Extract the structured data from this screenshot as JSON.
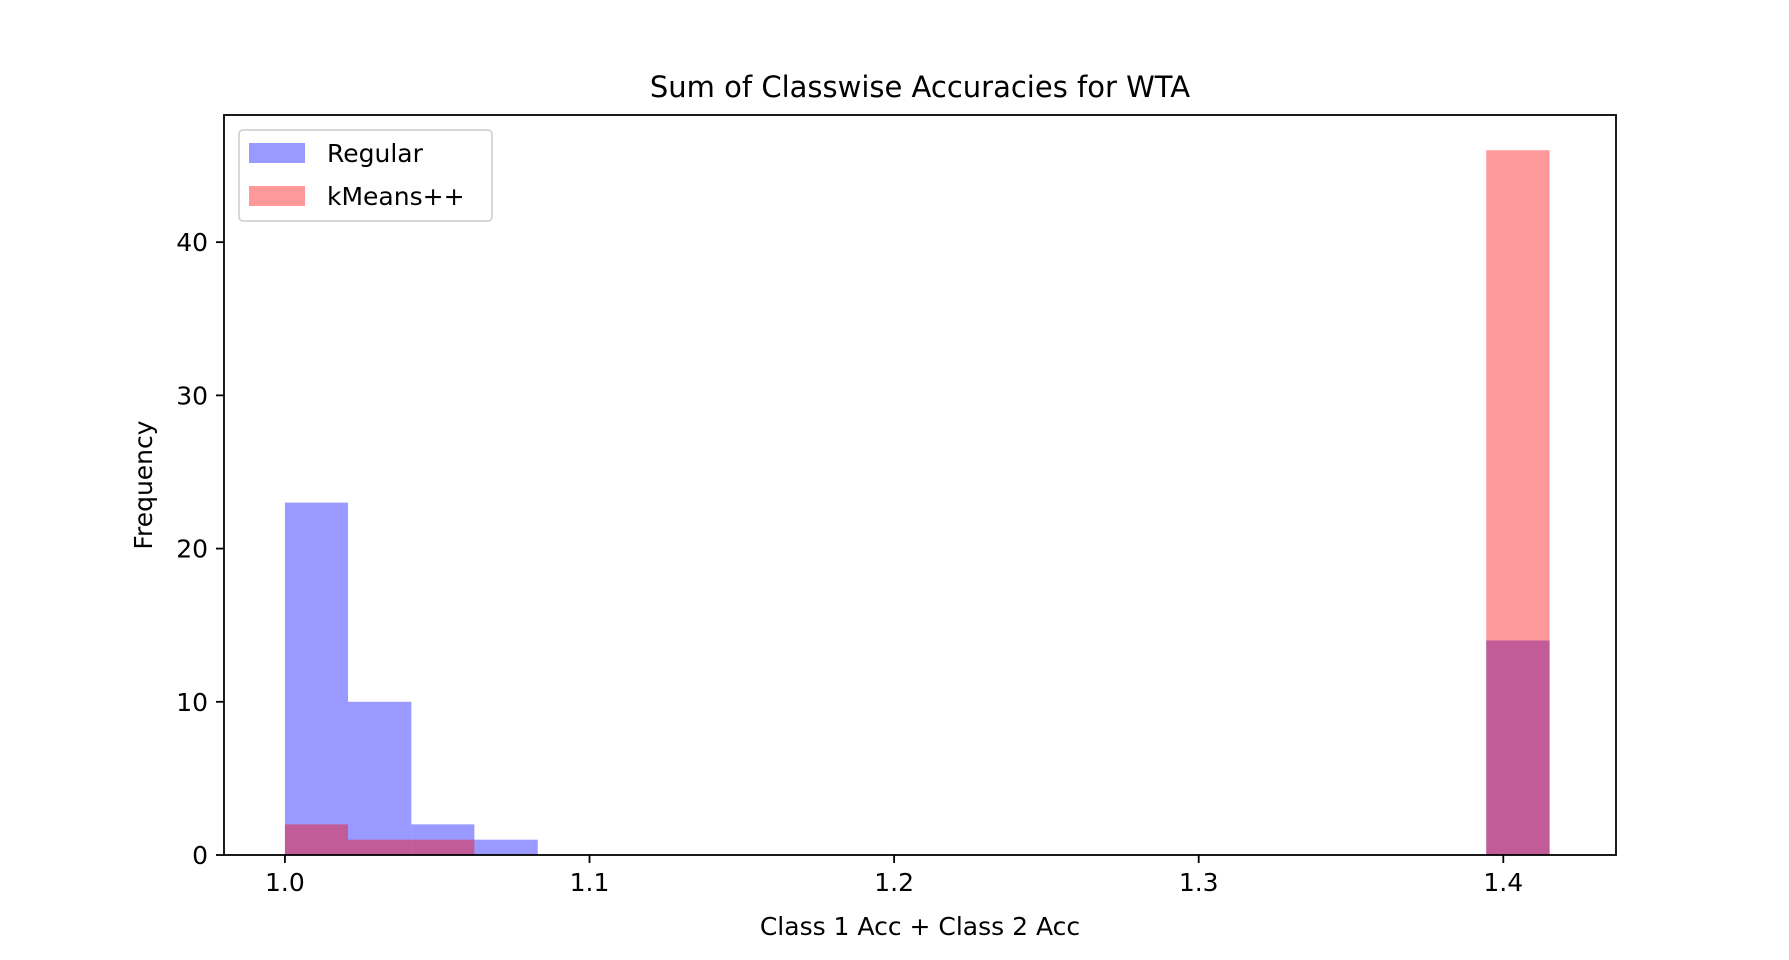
{
  "chart_data": {
    "type": "histogram",
    "title": "Sum of Classwise Accuracies for WTA",
    "xlabel": "Class 1 Acc + Class 2 Acc",
    "ylabel": "Frequency",
    "xlim": [
      0.98,
      1.437
    ],
    "ylim": [
      0,
      48.3
    ],
    "xticks": [
      1.0,
      1.1,
      1.2,
      1.3,
      1.4
    ],
    "xtick_labels": [
      "1.0",
      "1.1",
      "1.2",
      "1.3",
      "1.4"
    ],
    "yticks": [
      0,
      10,
      20,
      30,
      40
    ],
    "ytick_labels": [
      "0",
      "10",
      "20",
      "30",
      "40"
    ],
    "grid": false,
    "legend_position": "top-left",
    "series": [
      {
        "name": "Regular",
        "color": "#0000ff",
        "opacity": 0.4,
        "bins": [
          {
            "x0": 1.0,
            "x1": 1.0207,
            "count": 23
          },
          {
            "x0": 1.0207,
            "x1": 1.0415,
            "count": 10
          },
          {
            "x0": 1.0415,
            "x1": 1.0622,
            "count": 2
          },
          {
            "x0": 1.0622,
            "x1": 1.083,
            "count": 1
          },
          {
            "x0": 1.3944,
            "x1": 1.4152,
            "count": 14
          }
        ]
      },
      {
        "name": "kMeans++",
        "color": "#ff0000",
        "opacity": 0.4,
        "bins": [
          {
            "x0": 1.0,
            "x1": 1.0207,
            "count": 2
          },
          {
            "x0": 1.0207,
            "x1": 1.0415,
            "count": 1
          },
          {
            "x0": 1.0415,
            "x1": 1.0622,
            "count": 1
          },
          {
            "x0": 1.3944,
            "x1": 1.4152,
            "count": 46
          }
        ]
      }
    ]
  }
}
